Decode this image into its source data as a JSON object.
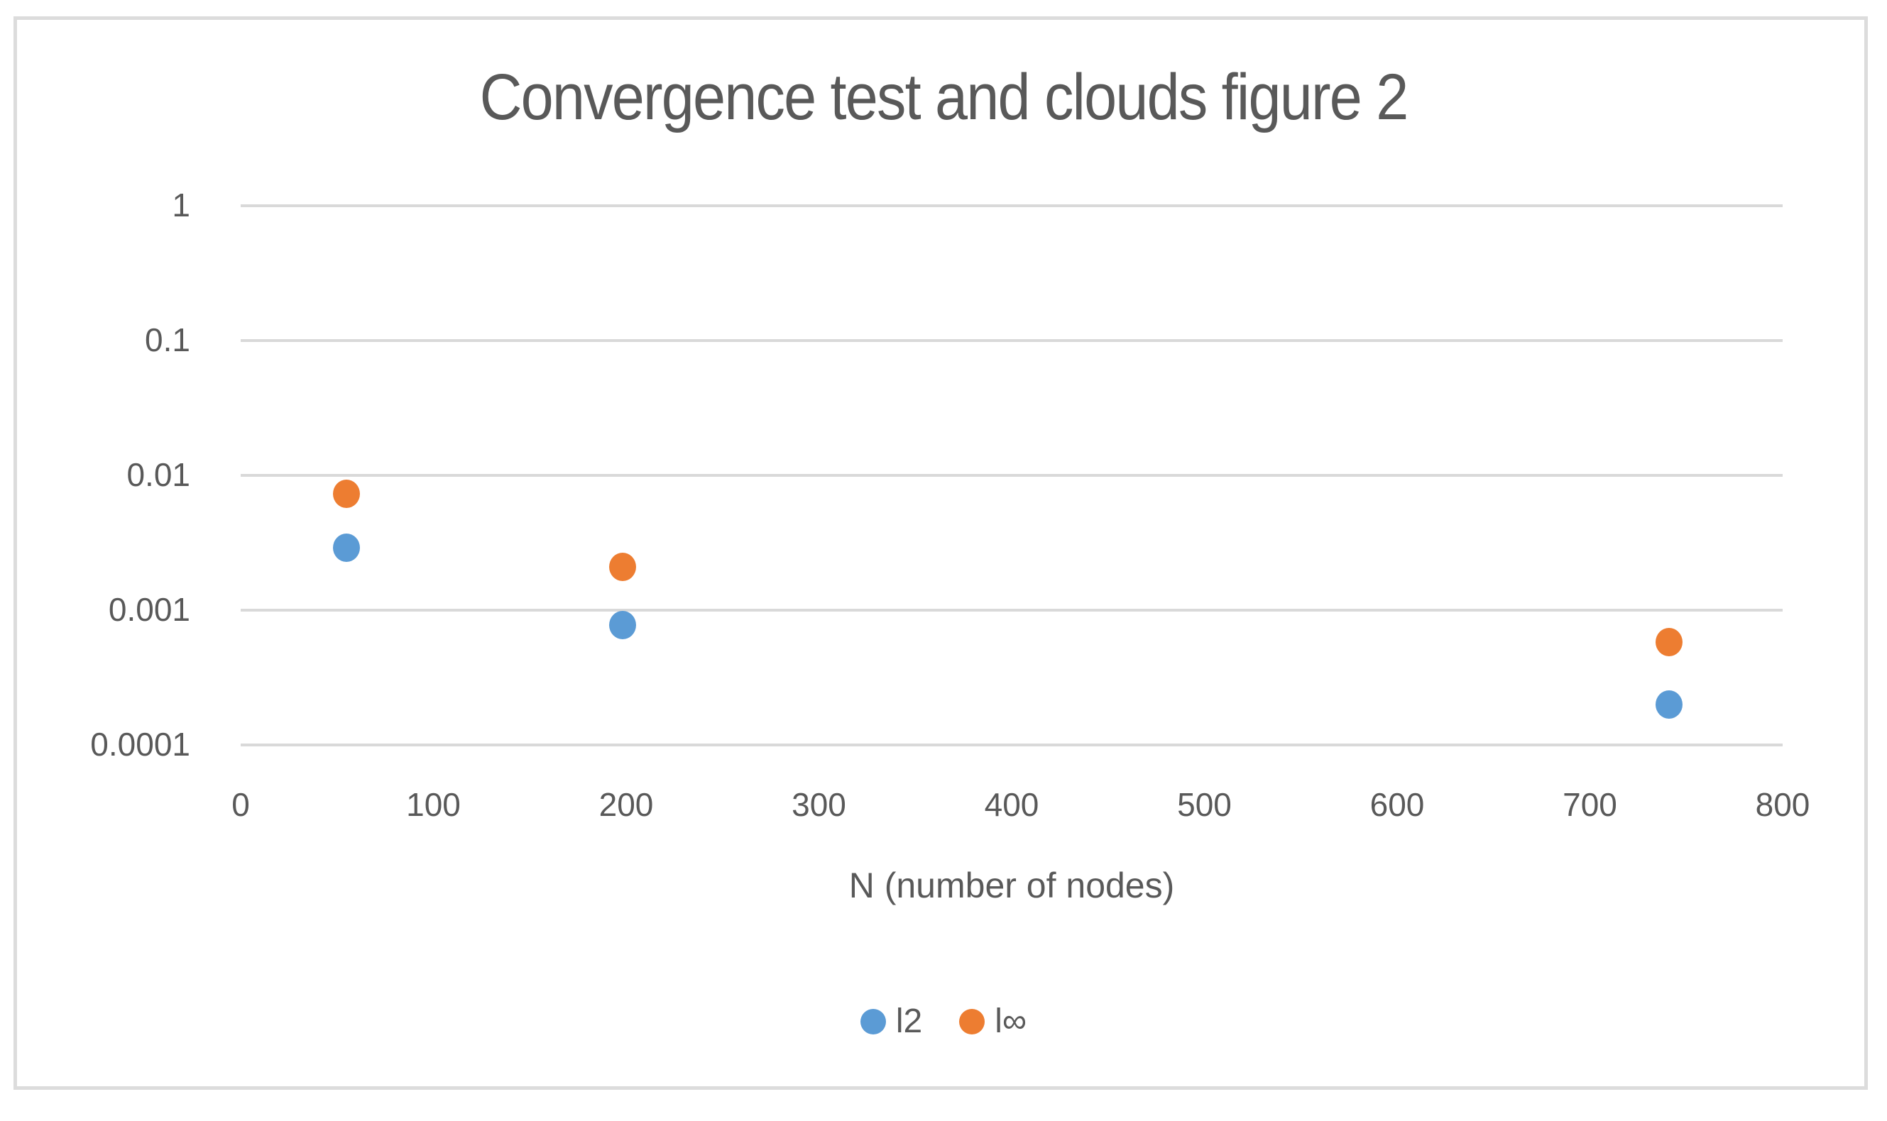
{
  "figure": {
    "background_color": "#ffffff",
    "border_color": "#dcdcdc"
  },
  "text_colors": {
    "title": "#595959",
    "axis_labels": "#595959",
    "gridline": "#d9d9d9"
  },
  "chart_data": {
    "type": "scatter",
    "title": "Convergence test and clouds figure 2",
    "xlabel": "N (number of nodes)",
    "ylabel": "",
    "grid": true,
    "legend_position": "bottom",
    "x_axis": {
      "min": 0,
      "max": 800,
      "ticks": [
        0,
        100,
        200,
        300,
        400,
        500,
        600,
        700,
        800
      ]
    },
    "y_axis": {
      "scale": "log",
      "min": 0.0001,
      "max": 1,
      "tick_labels": [
        "1",
        "0.1",
        "0.01",
        "0.001",
        "0.0001"
      ]
    },
    "series": [
      {
        "name": "l2",
        "color": "#5B9BD5",
        "points": [
          {
            "x": 55,
            "y": 0.0029
          },
          {
            "x": 198,
            "y": 0.00078
          },
          {
            "x": 741,
            "y": 0.0002
          }
        ]
      },
      {
        "name": "l∞",
        "color": "#ED7D31",
        "points": [
          {
            "x": 55,
            "y": 0.0073
          },
          {
            "x": 198,
            "y": 0.0021
          },
          {
            "x": 741,
            "y": 0.00058
          }
        ]
      }
    ]
  }
}
